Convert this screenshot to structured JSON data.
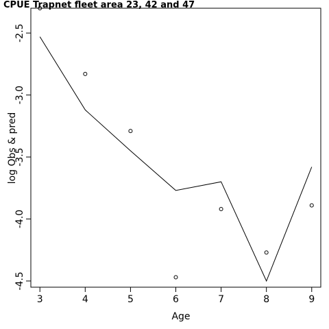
{
  "chart_data": {
    "type": "line",
    "title": "CPUE Trapnet fleet area 23, 42 and 47",
    "xlabel": "Age",
    "ylabel": "log Obs & pred",
    "x": [
      3,
      4,
      5,
      6,
      7,
      8,
      9
    ],
    "xticks": [
      "3",
      "4",
      "5",
      "6",
      "7",
      "8",
      "9"
    ],
    "yticks": [
      "-2.5",
      "-3.0",
      "-3.5",
      "-4.0",
      "-4.5"
    ],
    "ytick_values": [
      -2.5,
      -3.0,
      -3.5,
      -4.0,
      -4.5
    ],
    "xlim": [
      2.8,
      9.2
    ],
    "ylim": [
      -4.55,
      -2.3
    ],
    "series": [
      {
        "role": "observed",
        "style": "points",
        "values": [
          -2.3,
          -2.83,
          -3.29,
          -4.47,
          -3.92,
          -4.27,
          -3.89
        ]
      },
      {
        "role": "predicted",
        "style": "line",
        "values": [
          -2.53,
          -3.12,
          -3.45,
          -3.77,
          -3.7,
          -4.5,
          -3.58
        ]
      }
    ],
    "grid": false
  }
}
